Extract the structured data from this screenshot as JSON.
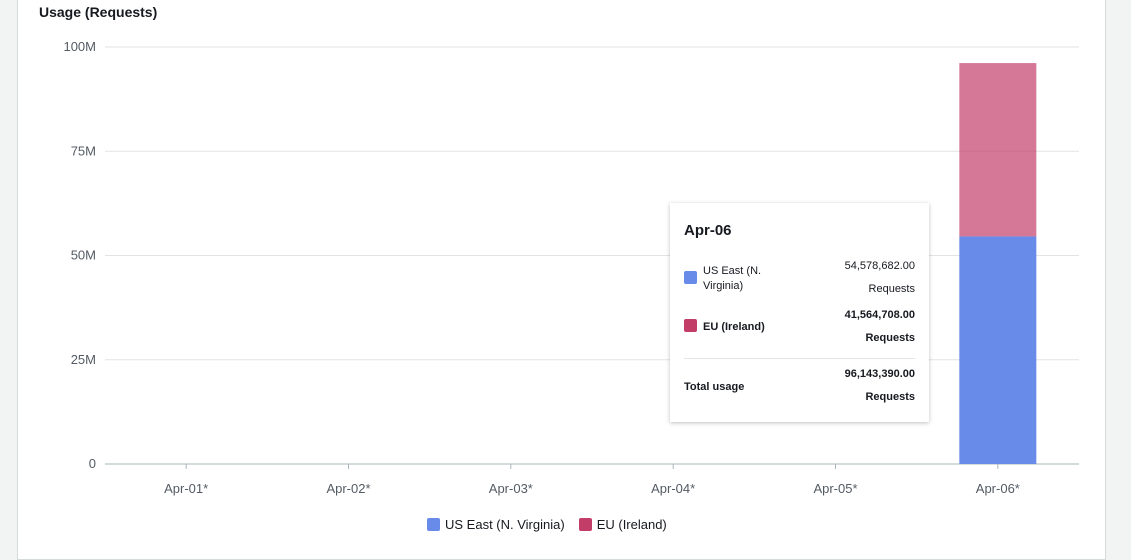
{
  "chart_data": {
    "type": "bar",
    "stacked": true,
    "title": "Usage (Requests)",
    "categories": [
      "Apr-01*",
      "Apr-02*",
      "Apr-03*",
      "Apr-04*",
      "Apr-05*",
      "Apr-06*"
    ],
    "series": [
      {
        "name": "US East (N. Virginia)",
        "color": "#688ae8",
        "values": [
          0,
          0,
          0,
          0,
          0,
          54578682
        ]
      },
      {
        "name": "EU (Ireland)",
        "color": "#c33d69",
        "values": [
          0,
          0,
          0,
          0,
          0,
          41564708
        ]
      }
    ],
    "ylim": [
      0,
      100000000
    ],
    "yticks": [
      {
        "value": 0,
        "label": "0"
      },
      {
        "value": 25000000,
        "label": "25M"
      },
      {
        "value": 50000000,
        "label": "50M"
      },
      {
        "value": 75000000,
        "label": "75M"
      },
      {
        "value": 100000000,
        "label": "100M"
      }
    ],
    "grid": true,
    "legend_position": "bottom"
  },
  "tooltip": {
    "date": "Apr-06",
    "rows": [
      {
        "label": "US East (N. Virginia)",
        "value": "54,578,682.00",
        "unit": "Requests"
      },
      {
        "label": "EU (Ireland)",
        "value": "41,564,708.00",
        "unit": "Requests"
      }
    ],
    "total_label": "Total usage",
    "total_value": "96,143,390.00",
    "total_unit": "Requests"
  }
}
